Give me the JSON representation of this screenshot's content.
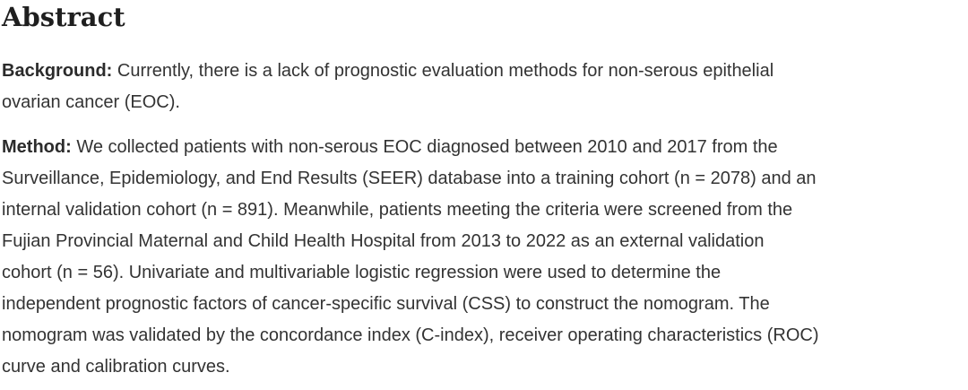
{
  "page": {
    "background_color": "#ffffff",
    "heading_color": "#1f1f1f",
    "body_text_color": "#333333"
  },
  "abstract": {
    "title": "Abstract",
    "paragraphs": [
      {
        "label": "Background:",
        "first_line_rest": " Currently, there is a lack of prognostic evaluation methods for non-serous epithelial",
        "more_lines": [
          "ovarian cancer (EOC)."
        ]
      },
      {
        "label": "Method:",
        "first_line_rest": " We collected patients with non-serous EOC diagnosed between 2010 and 2017 from the",
        "more_lines": [
          "Surveillance, Epidemiology, and End Results (SEER) database into a training cohort (n = 2078) and an",
          "internal validation cohort (n = 891). Meanwhile, patients meeting the criteria were screened from the",
          "Fujian Provincial Maternal and Child Health Hospital from 2013 to 2022 as an external validation",
          "cohort (n = 56). Univariate and multivariable logistic regression were used to determine the",
          "independent prognostic factors of cancer-specific survival (CSS) to construct the nomogram. The",
          "nomogram was validated by the concordance index (C-index), receiver operating characteristics (ROC)",
          "curve and calibration curves."
        ]
      }
    ]
  }
}
